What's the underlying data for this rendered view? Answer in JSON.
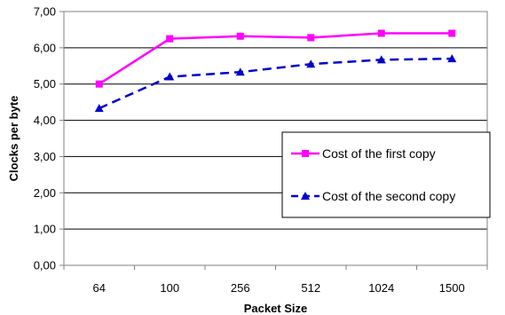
{
  "chart_data": {
    "type": "line",
    "categories": [
      "64",
      "100",
      "256",
      "512",
      "1024",
      "1500"
    ],
    "xlabel": "Packet Size",
    "ylabel": "Clocks per byte",
    "ylim": [
      0,
      7
    ],
    "yticks": [
      "0,00",
      "1,00",
      "2,00",
      "3,00",
      "4,00",
      "5,00",
      "6,00",
      "7,00"
    ],
    "grid": true,
    "legend_placement": "right",
    "series": [
      {
        "name": "Cost of the first copy",
        "values": [
          5.0,
          6.25,
          6.32,
          6.28,
          6.4,
          6.4
        ],
        "color": "#ff00ff",
        "marker": "square",
        "line_style": "solid"
      },
      {
        "name": "Cost of the second copy",
        "values": [
          4.33,
          5.2,
          5.33,
          5.55,
          5.67,
          5.7
        ],
        "color": "#0000cc",
        "marker": "triangle",
        "line_style": "dashed"
      }
    ]
  }
}
